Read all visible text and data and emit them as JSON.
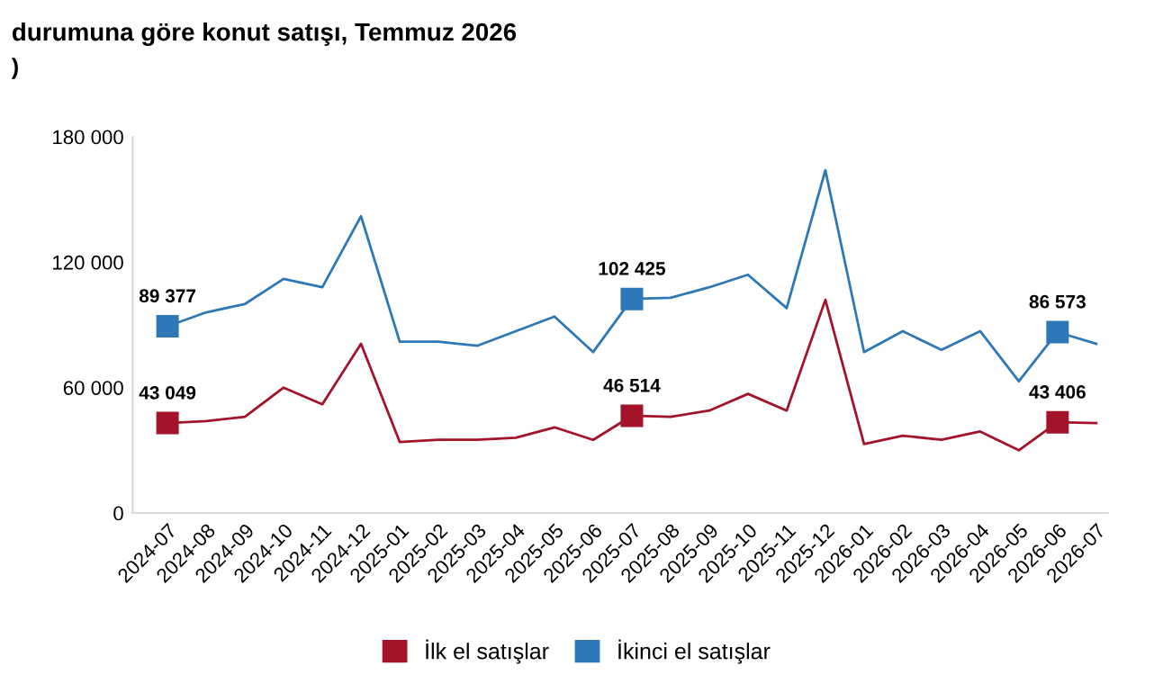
{
  "chart_data": {
    "type": "line",
    "title": "durumuna göre konut satışı, Temmuz 2026",
    "subtitle": ")",
    "categories": [
      "2024-07",
      "2024-08",
      "2024-09",
      "2024-10",
      "2024-11",
      "2024-12",
      "2025-01",
      "2025-02",
      "2025-03",
      "2025-04",
      "2025-05",
      "2025-06",
      "2025-07",
      "2025-08",
      "2025-09",
      "2025-10",
      "2025-11",
      "2025-12",
      "2026-01",
      "2026-02",
      "2026-03",
      "2026-04",
      "2026-05",
      "2026-06",
      "2026-07"
    ],
    "series": [
      {
        "name": "İlk el satışlar",
        "color": "#a3142a",
        "values": [
          43049,
          44000,
          46000,
          60000,
          52000,
          81000,
          34000,
          35000,
          35000,
          36000,
          41000,
          35000,
          46514,
          46000,
          49000,
          57000,
          49000,
          102000,
          33000,
          37000,
          35000,
          39000,
          30000,
          43406,
          43000
        ],
        "value_labels": [
          "43 049",
          null,
          null,
          null,
          null,
          null,
          null,
          null,
          null,
          null,
          null,
          null,
          "46 514",
          null,
          null,
          null,
          null,
          null,
          null,
          null,
          null,
          null,
          null,
          "43 406",
          null
        ]
      },
      {
        "name": "İkinci el satışlar",
        "color": "#2e78b8",
        "values": [
          89377,
          96000,
          100000,
          112000,
          108000,
          142000,
          82000,
          82000,
          80000,
          87000,
          94000,
          77000,
          102425,
          103000,
          108000,
          114000,
          98000,
          164000,
          77000,
          87000,
          78000,
          87000,
          63000,
          86573,
          81000
        ],
        "value_labels": [
          "89 377",
          null,
          null,
          null,
          null,
          null,
          null,
          null,
          null,
          null,
          null,
          null,
          "102 425",
          null,
          null,
          null,
          null,
          null,
          null,
          null,
          null,
          null,
          null,
          "86 573",
          null
        ]
      }
    ],
    "ylim": [
      0,
      180000
    ],
    "yticks": [
      0,
      {
        "value": 60000,
        "label": "60 000"
      },
      {
        "value": 120000,
        "label": "120 000"
      },
      {
        "value": 180000,
        "label": "180 000"
      }
    ],
    "grid": false,
    "legend": "bottom"
  }
}
